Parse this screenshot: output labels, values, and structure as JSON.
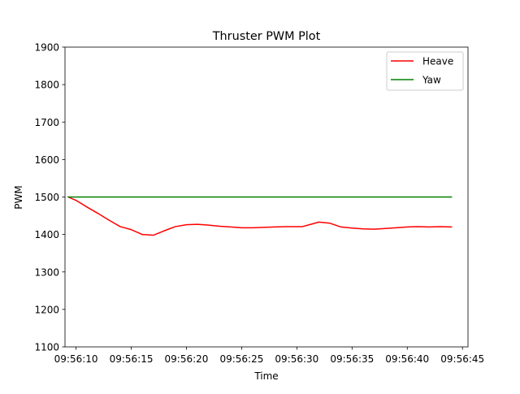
{
  "chart_data": {
    "type": "line",
    "title": "Thruster PWM Plot",
    "xlabel": "Time",
    "ylabel": "PWM",
    "x_unit": "time of day (HH:MM:SS)",
    "xlim": [
      "09:56:09",
      "09:56:45.5"
    ],
    "ylim": [
      1100,
      1900
    ],
    "xticks": [
      "09:56:10",
      "09:56:15",
      "09:56:20",
      "09:56:25",
      "09:56:30",
      "09:56:35",
      "09:56:40",
      "09:56:45"
    ],
    "yticks": [
      1100,
      1200,
      1300,
      1400,
      1500,
      1600,
      1700,
      1800,
      1900
    ],
    "grid": false,
    "legend_position": "top-right",
    "series": [
      {
        "name": "Heave",
        "color": "#ff0000",
        "x": [
          "09:56:09.3",
          "09:56:10.0",
          "09:56:11.0",
          "09:56:12.0",
          "09:56:13.0",
          "09:56:14.0",
          "09:56:15.0",
          "09:56:16.0",
          "09:56:17.0",
          "09:56:18.0",
          "09:56:19.0",
          "09:56:20.0",
          "09:56:21.0",
          "09:56:22.0",
          "09:56:23.0",
          "09:56:24.0",
          "09:56:25.0",
          "09:56:26.0",
          "09:56:27.0",
          "09:56:28.0",
          "09:56:29.0",
          "09:56:30.0",
          "09:56:30.5",
          "09:56:31.0",
          "09:56:32.0",
          "09:56:33.0",
          "09:56:34.0",
          "09:56:35.0",
          "09:56:36.0",
          "09:56:37.0",
          "09:56:38.0",
          "09:56:39.0",
          "09:56:40.0",
          "09:56:41.0",
          "09:56:42.0",
          "09:56:43.0",
          "09:56:44.0"
        ],
        "y": [
          1500,
          1491,
          1473,
          1456,
          1438,
          1421,
          1413,
          1400,
          1398,
          1410,
          1421,
          1426,
          1427,
          1425,
          1422,
          1420,
          1418,
          1418,
          1419,
          1420,
          1421,
          1421,
          1421,
          1425,
          1433,
          1430,
          1420,
          1417,
          1415,
          1414,
          1416,
          1418,
          1420,
          1421,
          1420,
          1421,
          1420
        ]
      },
      {
        "name": "Yaw",
        "color": "#008000",
        "x": [
          "09:56:09.3",
          "09:56:44.0"
        ],
        "y": [
          1500,
          1500
        ]
      }
    ]
  }
}
